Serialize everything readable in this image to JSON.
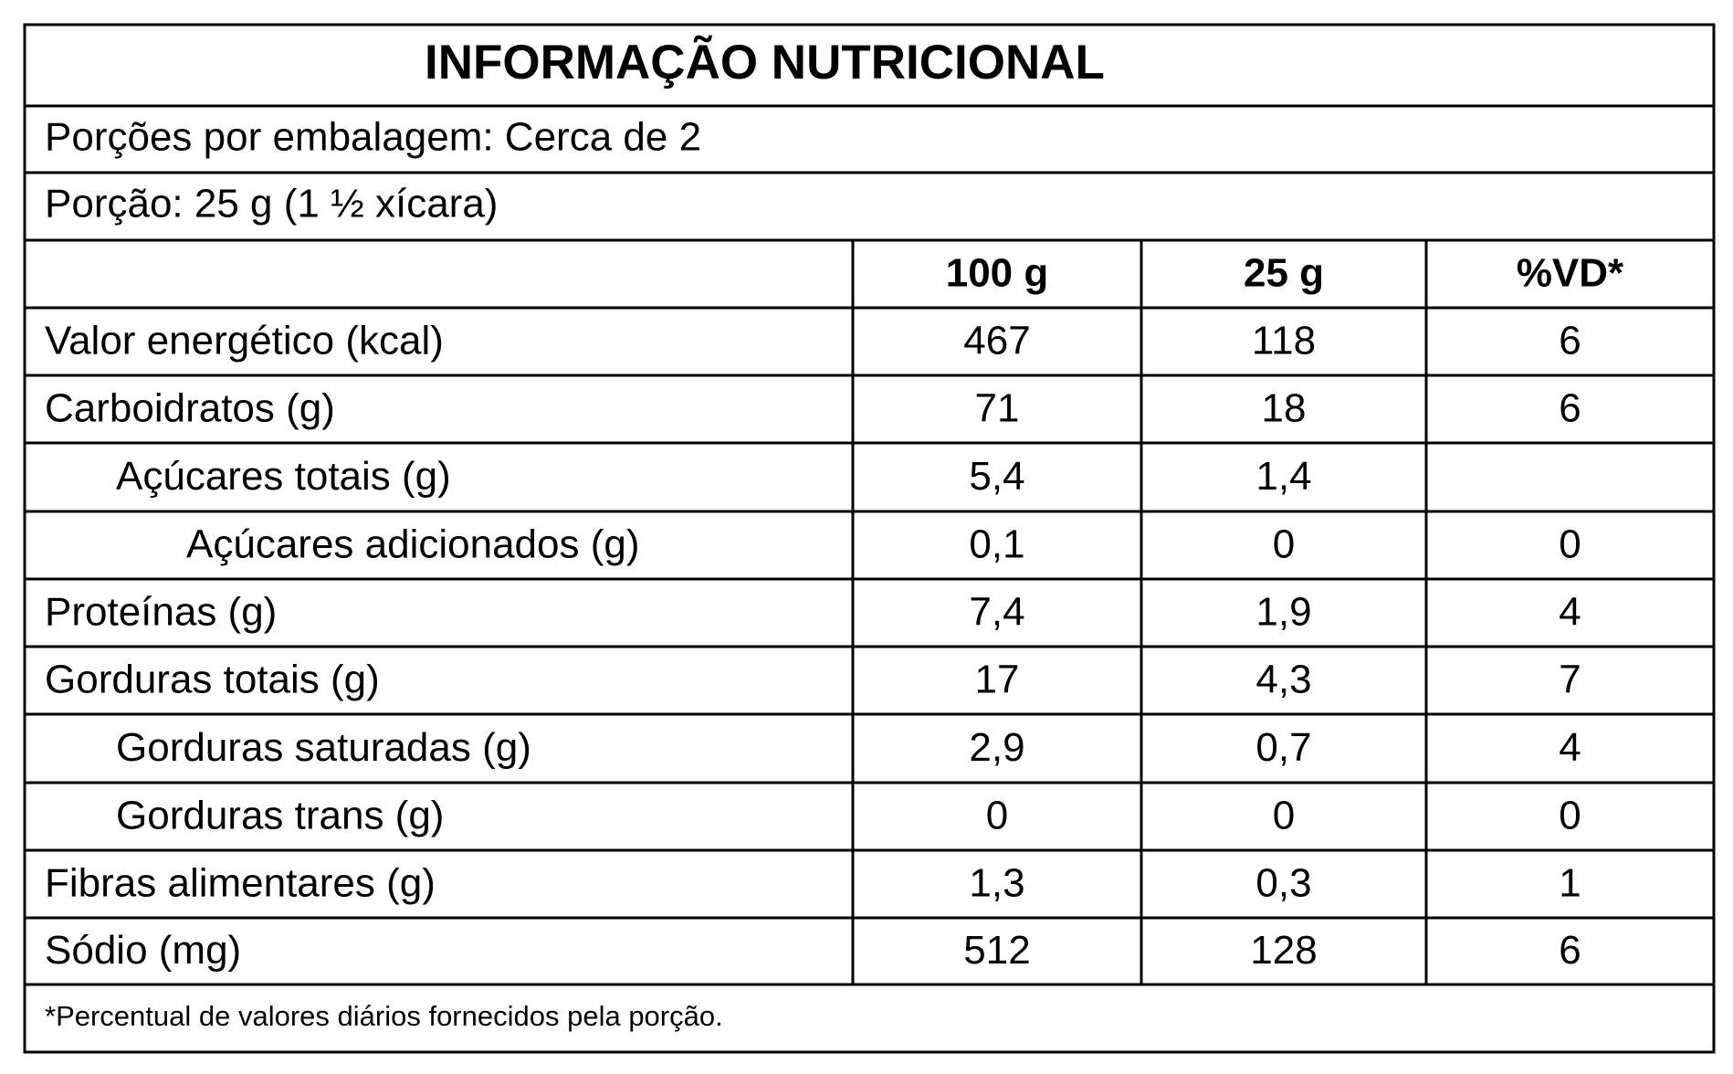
{
  "title": "INFORMAÇÃO NUTRICIONAL",
  "servings_per_package": "Porções por embalagem: Cerca de 2",
  "serving_size": "Porção: 25 g (1 ½ xícara)",
  "table": {
    "header": [
      "100 g",
      "25 g",
      "%VD*"
    ],
    "rows": [
      [
        "Valor energético (kcal)",
        "467",
        "118",
        "6"
      ],
      [
        "Carboidratos (g)",
        "71",
        "18",
        "6"
      ],
      [
        "Açúcares totais (g)",
        "5,4",
        "1,4",
        null
      ],
      [
        "Açúcares adicionados (g)",
        "0,1",
        "0",
        "0"
      ],
      [
        "Proteínas (g)",
        "7,4",
        "1,9",
        "4"
      ],
      [
        "Gorduras totais (g)",
        "17",
        "4,3",
        "7"
      ],
      [
        "Gorduras saturadas (g)",
        "2,9",
        "0,7",
        "4"
      ],
      [
        "Gorduras trans (g)",
        "0",
        "0",
        "0"
      ],
      [
        "Fibras alimentares (g)",
        "1,3",
        "0,3",
        "1"
      ],
      [
        "Sódio (mg)",
        "512",
        "128",
        "6"
      ]
    ]
  },
  "footnote": "*Percentual de valores diários fornecidos pela porção."
}
